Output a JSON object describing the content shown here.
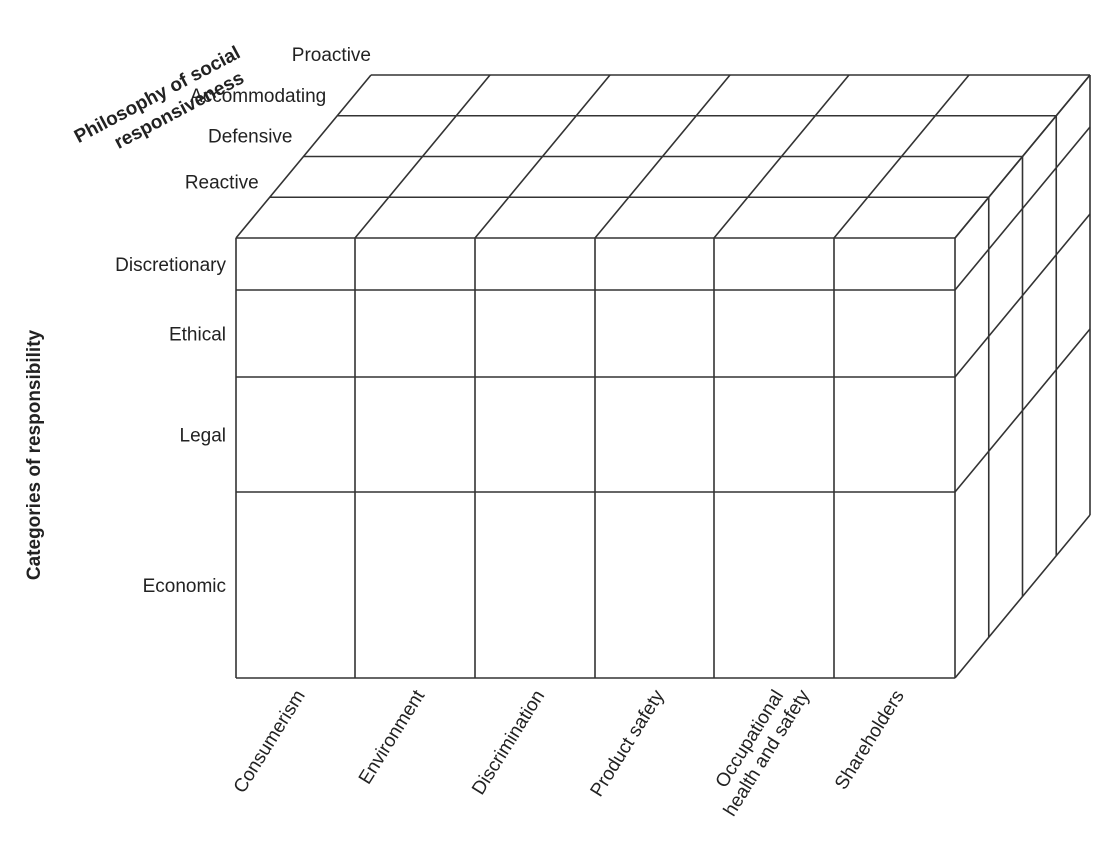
{
  "philosophy_axis": {
    "title_lines": [
      "Philosophy of social",
      "responsiveness"
    ],
    "levels": [
      "Proactive",
      "Accommodating",
      "Defensive",
      "Reactive"
    ]
  },
  "categories_axis": {
    "title": "Categories of responsibility",
    "levels": [
      "Discretionary",
      "Ethical",
      "Legal",
      "Economic"
    ]
  },
  "issues_axis": {
    "issues": [
      [
        "Consumerism"
      ],
      [
        "Environment"
      ],
      [
        "Discrimination"
      ],
      [
        "Product safety"
      ],
      [
        "Occupational",
        "health and safety"
      ],
      [
        "Shareholders"
      ]
    ]
  }
}
